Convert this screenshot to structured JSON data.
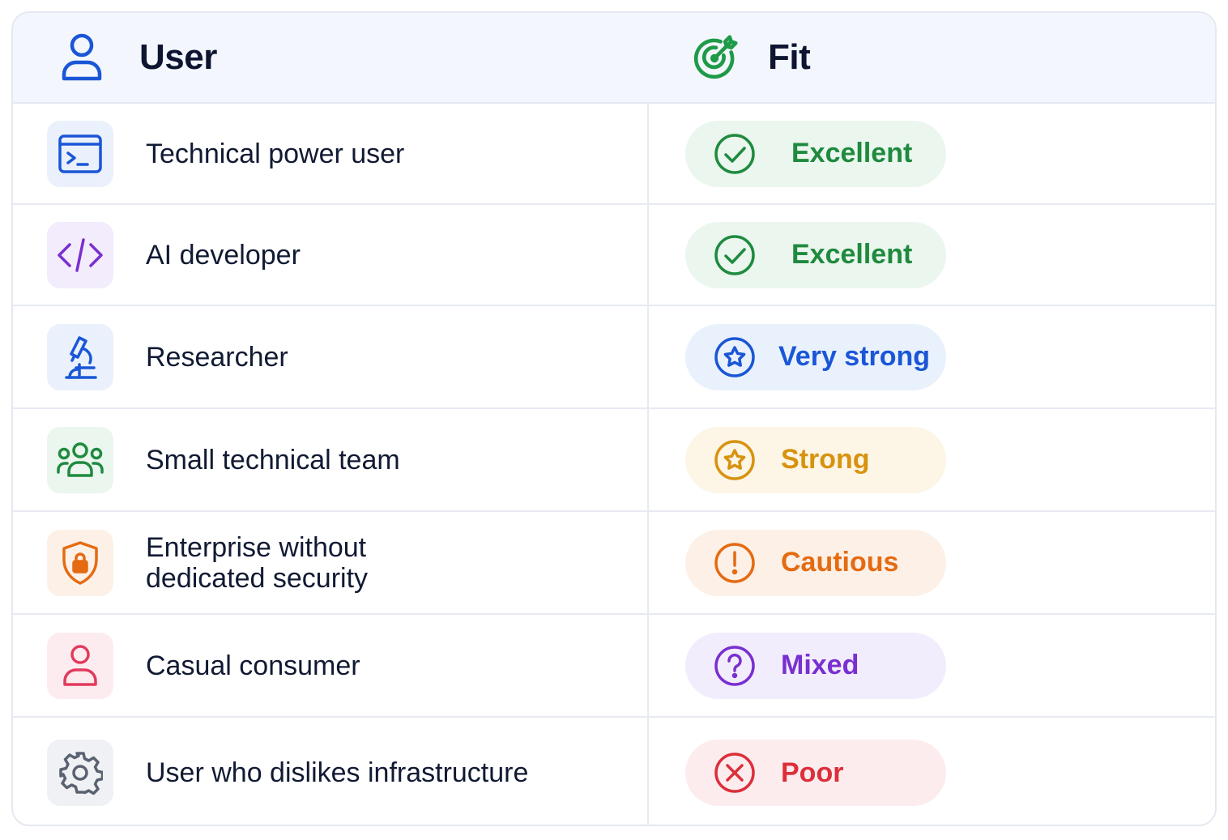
{
  "header": {
    "user_label": "User",
    "fit_label": "Fit"
  },
  "rows": [
    {
      "user": "Technical power user",
      "fit": "Excellent"
    },
    {
      "user": "AI developer",
      "fit": "Excellent"
    },
    {
      "user": "Researcher",
      "fit": "Very strong"
    },
    {
      "user": "Small technical team",
      "fit": "Strong"
    },
    {
      "user": "Enterprise without\ndedicated security",
      "fit": "Cautious"
    },
    {
      "user": "Casual consumer",
      "fit": "Mixed"
    },
    {
      "user": "User who dislikes infrastructure",
      "fit": "Poor"
    }
  ],
  "colors": {
    "excellent": "#1f8a3e",
    "very_strong": "#1a56d6",
    "strong": "#d7930f",
    "cautious": "#e46b12",
    "mixed": "#7a2fd0",
    "poor": "#dc2f3a",
    "header_bg": "#f3f7fd",
    "border": "#e4e8f0"
  },
  "icons": {
    "header_user": "user-icon",
    "header_fit": "target-icon",
    "rows": [
      "terminal-icon",
      "code-icon",
      "microscope-icon",
      "team-icon",
      "shield-lock-icon",
      "person-icon",
      "gear-icon"
    ],
    "fits": [
      "check-circle-icon",
      "check-circle-icon",
      "star-circle-icon",
      "star-circle-icon",
      "exclamation-circle-icon",
      "question-circle-icon",
      "x-circle-icon"
    ]
  }
}
